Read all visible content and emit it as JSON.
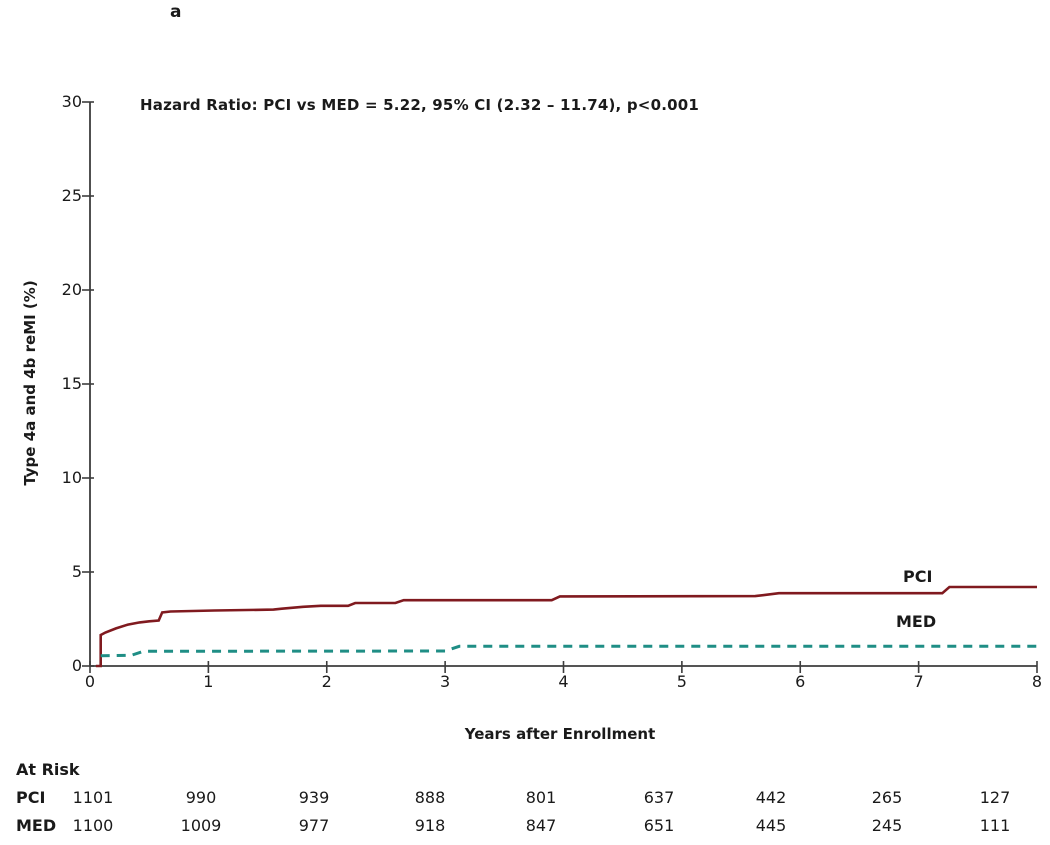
{
  "panel_label": "a",
  "annotation": "Hazard Ratio: PCI vs MED = 5.22, 95% CI (2.32 – 11.74), p<0.001",
  "chart_data": {
    "type": "line",
    "subtype": "kaplan-meier-cumulative-incidence-step",
    "title": "",
    "xlabel": "Years after Enrollment",
    "ylabel": "Type 4a and 4b reMI (%)",
    "xlim": [
      0,
      8
    ],
    "ylim": [
      0,
      30
    ],
    "xticks": [
      0,
      1,
      2,
      3,
      4,
      5,
      6,
      7,
      8
    ],
    "yticks": [
      0,
      5,
      10,
      15,
      20,
      25,
      30
    ],
    "grid": false,
    "legend_position": "inline-right-of-curves",
    "series": [
      {
        "name": "PCI",
        "color": "#801a1f",
        "style": "solid",
        "points": [
          [
            0.05,
            0
          ],
          [
            0.09,
            0
          ],
          [
            0.09,
            1.65
          ],
          [
            0.13,
            1.78
          ],
          [
            0.22,
            2.0
          ],
          [
            0.32,
            2.2
          ],
          [
            0.42,
            2.32
          ],
          [
            0.5,
            2.38
          ],
          [
            0.58,
            2.42
          ],
          [
            0.61,
            2.85
          ],
          [
            0.68,
            2.9
          ],
          [
            1.05,
            2.95
          ],
          [
            1.55,
            3.0
          ],
          [
            1.62,
            3.05
          ],
          [
            1.8,
            3.15
          ],
          [
            1.95,
            3.2
          ],
          [
            2.18,
            3.2
          ],
          [
            2.24,
            3.35
          ],
          [
            2.58,
            3.35
          ],
          [
            2.65,
            3.5
          ],
          [
            3.9,
            3.5
          ],
          [
            3.97,
            3.7
          ],
          [
            5.62,
            3.72
          ],
          [
            5.82,
            3.87
          ],
          [
            7.2,
            3.87
          ],
          [
            7.26,
            4.2
          ],
          [
            8,
            4.2
          ]
        ]
      },
      {
        "name": "MED",
        "color": "#1f8e85",
        "style": "dashed",
        "points": [
          [
            0.09,
            0.55
          ],
          [
            0.35,
            0.57
          ],
          [
            0.45,
            0.78
          ],
          [
            3.0,
            0.8
          ],
          [
            3.12,
            1.05
          ],
          [
            8,
            1.05
          ]
        ]
      }
    ]
  },
  "at_risk": {
    "title": "At Risk",
    "time_points": [
      0,
      1,
      2,
      3,
      4,
      5,
      6,
      7,
      8
    ],
    "rows": [
      {
        "label": "PCI",
        "values": [
          "1101",
          "990",
          "939",
          "888",
          "801",
          "637",
          "442",
          "265",
          "127"
        ]
      },
      {
        "label": "MED",
        "values": [
          "1100",
          "1009",
          "977",
          "918",
          "847",
          "651",
          "445",
          "245",
          "111"
        ]
      }
    ]
  },
  "colors": {
    "pci_line": "#801a1f",
    "med_line": "#1f8e85",
    "axis": "#3d3d3d",
    "text": "#1a1a1a"
  }
}
